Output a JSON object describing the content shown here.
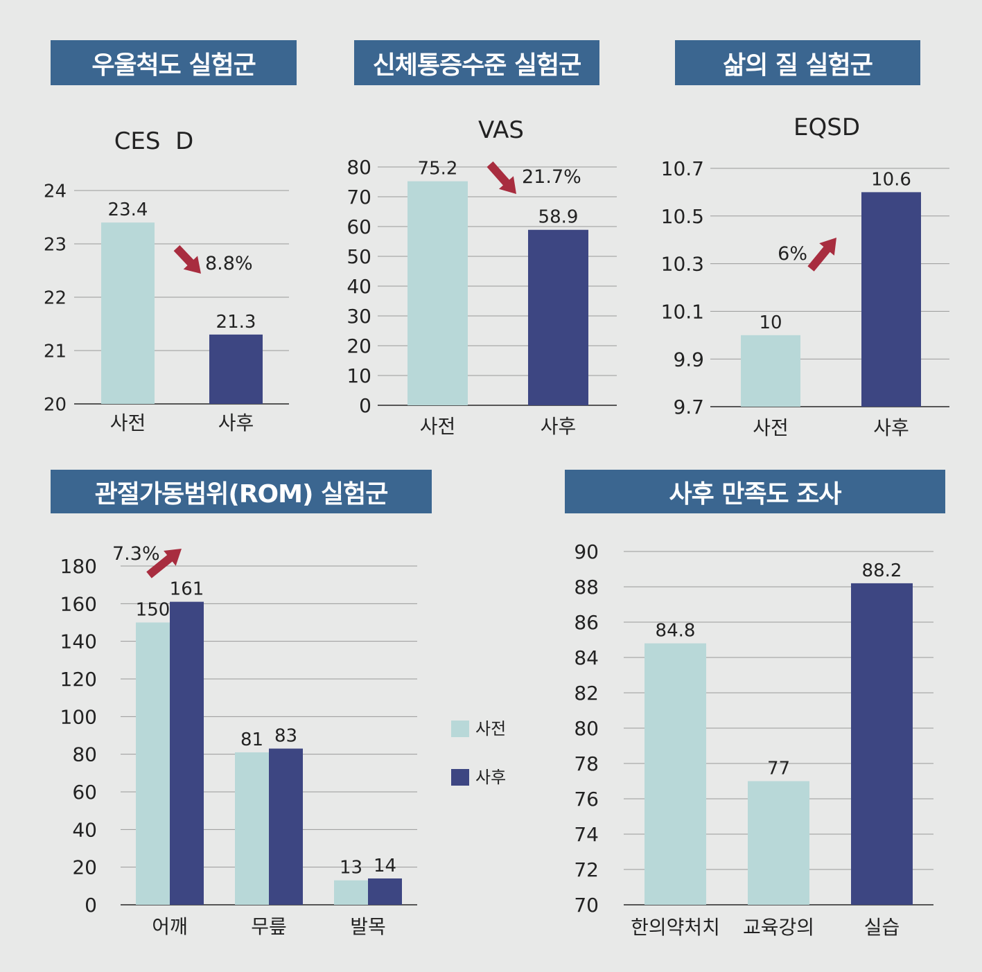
{
  "colors": {
    "pre": "#b8d8d8",
    "post": "#3d4682",
    "header": "#3b6690",
    "arrow": "#a82d3f",
    "grid": "#999999"
  },
  "chart_data": [
    {
      "type": "bar",
      "title": "우울척도 실험군",
      "subtitle": "CES  D",
      "ylim": [
        20,
        24
      ],
      "yticks": [
        20,
        21,
        22,
        23,
        24
      ],
      "tick_decimals": 0,
      "categories": [
        "사전",
        "사후"
      ],
      "values": [
        23.4,
        21.3
      ],
      "value_labels": [
        "23.4",
        "21.3"
      ],
      "bar_series": [
        "pre",
        "post"
      ],
      "annotation": {
        "text": "8.8%",
        "direction": "down"
      }
    },
    {
      "type": "bar",
      "title": "신체통증수준 실험군",
      "subtitle": "VAS",
      "ylim": [
        0,
        80
      ],
      "yticks": [
        0,
        10,
        20,
        30,
        40,
        50,
        60,
        70,
        80
      ],
      "tick_decimals": 0,
      "categories": [
        "사전",
        "사후"
      ],
      "values": [
        75.2,
        58.9
      ],
      "value_labels": [
        "75.2",
        "58.9"
      ],
      "bar_series": [
        "pre",
        "post"
      ],
      "annotation": {
        "text": "21.7%",
        "direction": "down"
      }
    },
    {
      "type": "bar",
      "title": "삶의 질 실험군",
      "subtitle": "EQSD",
      "ylim": [
        9.7,
        10.7
      ],
      "yticks": [
        9.7,
        9.9,
        10.1,
        10.3,
        10.5,
        10.7
      ],
      "tick_decimals": 1,
      "categories": [
        "사전",
        "사후"
      ],
      "values": [
        10,
        10.6
      ],
      "value_labels": [
        "10",
        "10.6"
      ],
      "bar_series": [
        "pre",
        "post"
      ],
      "annotation": {
        "text": "6%",
        "direction": "up"
      }
    },
    {
      "type": "bar",
      "title": "관절가동범위(ROM) 실험군",
      "ylim": [
        0,
        180
      ],
      "yticks": [
        0,
        20,
        40,
        60,
        80,
        100,
        120,
        140,
        160,
        180
      ],
      "tick_decimals": 0,
      "categories": [
        "어깨",
        "무릎",
        "발목"
      ],
      "series": [
        {
          "name": "사전",
          "key": "pre",
          "values": [
            150,
            81,
            13
          ]
        },
        {
          "name": "사후",
          "key": "post",
          "values": [
            161,
            83,
            14
          ]
        }
      ],
      "legend": {
        "position": "right",
        "entries": [
          "사전",
          "사후"
        ]
      },
      "annotation": {
        "text": "7.3%",
        "direction": "up"
      }
    },
    {
      "type": "bar",
      "title": "사후 만족도 조사",
      "ylim": [
        70,
        90
      ],
      "yticks": [
        70,
        72,
        74,
        76,
        78,
        80,
        82,
        84,
        86,
        88,
        90
      ],
      "tick_decimals": 0,
      "categories": [
        "한의약처치",
        "교육강의",
        "실습"
      ],
      "values": [
        84.8,
        77,
        88.2
      ],
      "value_labels": [
        "84.8",
        "77",
        "88.2"
      ],
      "bar_series": [
        "pre",
        "pre",
        "post"
      ]
    }
  ]
}
